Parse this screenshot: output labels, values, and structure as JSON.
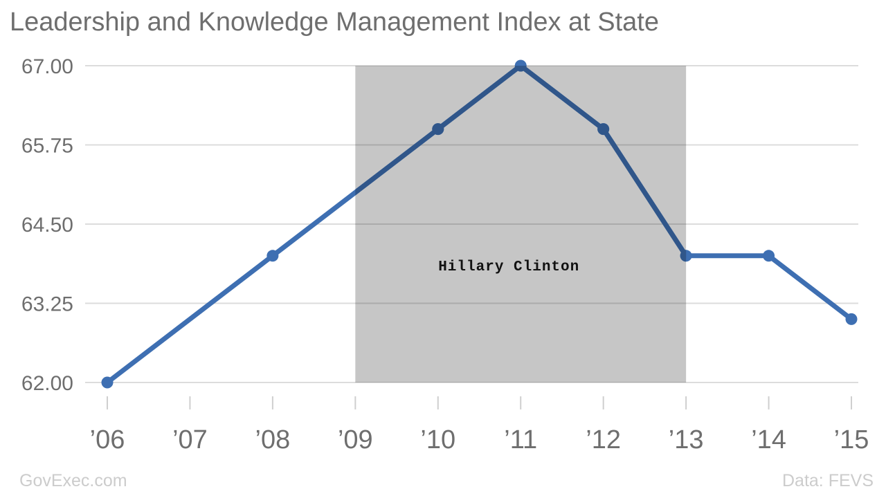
{
  "chart_data": {
    "type": "line",
    "title": "Leadership and Knowledge Management Index at State",
    "x_ticks": [
      "’06",
      "’07",
      "’08",
      "’09",
      "’10",
      "’11",
      "’12",
      "’13",
      "’14",
      "’15"
    ],
    "y_ticks": [
      {
        "label": "67.00",
        "value": 67.0
      },
      {
        "label": "65.75",
        "value": 65.75
      },
      {
        "label": "64.50",
        "value": 64.5
      },
      {
        "label": "63.25",
        "value": 63.25
      },
      {
        "label": "62.00",
        "value": 62.0
      }
    ],
    "ylim": [
      62.0,
      67.0
    ],
    "grid": "horizontal-only",
    "legend": "none",
    "series": [
      {
        "name": "Leadership and Knowledge Management Index",
        "color": "#3e6fb2",
        "points": [
          {
            "x": "’06",
            "y": 62.0
          },
          {
            "x": "’08",
            "y": 64.0
          },
          {
            "x": "’10",
            "y": 66.0
          },
          {
            "x": "’11",
            "y": 67.0
          },
          {
            "x": "’12",
            "y": 66.0
          },
          {
            "x": "’13",
            "y": 64.0
          },
          {
            "x": "’14",
            "y": 64.0
          },
          {
            "x": "’15",
            "y": 63.0
          }
        ]
      }
    ],
    "annotation": {
      "label": "Hillary Clinton",
      "x_start": "’09",
      "x_end": "’13",
      "band_color": "#c6c6c6",
      "text_color": "#111111"
    },
    "colors": {
      "grid_line": "#dcdcdc",
      "grid_line_in_band": "#ababab",
      "axis_tick": "#cfcfcf",
      "axis_text": "#6e6e6e",
      "title_text": "#6e6e6e",
      "footer_text": "#cccccc",
      "line_dark_in_band": "#30568a",
      "background": "#ffffff"
    },
    "footer": {
      "left": "GovExec.com",
      "right": "Data: FEVS"
    }
  }
}
